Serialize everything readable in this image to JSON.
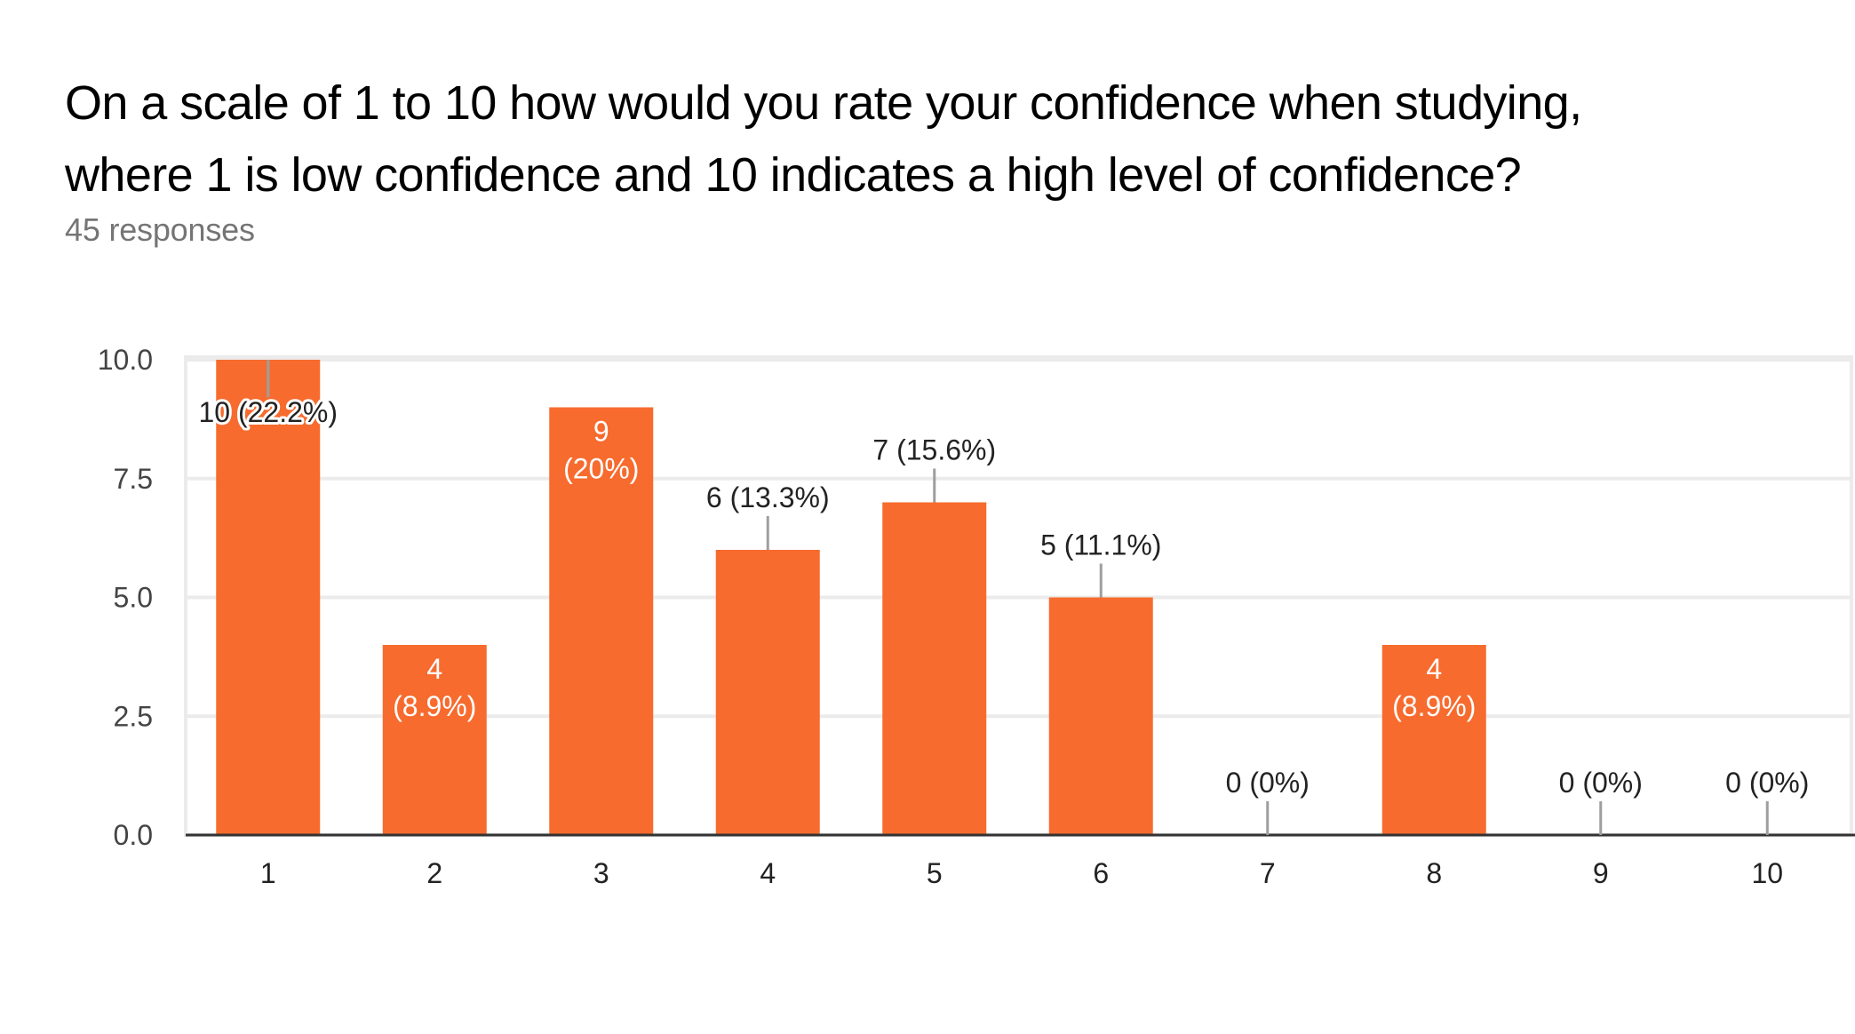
{
  "header": {
    "title_line1": "On a scale of 1 to 10 how would you rate your confidence when studying,",
    "title_line2": "where 1 is low confidence and 10 indicates a high level of confidence?",
    "responses": "45 responses"
  },
  "colors": {
    "bar": "#F76B2E",
    "grid": "#EBEBEB",
    "baseline": "#333333",
    "leader": "#9E9E9E"
  },
  "chart_data": {
    "type": "bar",
    "title": "On a scale of 1 to 10 how would you rate your confidence when studying, where 1 is low confidence and 10 indicates a high level of confidence?",
    "subtitle": "45 responses",
    "categories": [
      "1",
      "2",
      "3",
      "4",
      "5",
      "6",
      "7",
      "8",
      "9",
      "10"
    ],
    "values": [
      10,
      4,
      9,
      6,
      7,
      5,
      0,
      4,
      0,
      0
    ],
    "data_labels": [
      "10 (22.2%)",
      "4 (8.9%)",
      "9 (20%)",
      "6 (13.3%)",
      "7 (15.6%)",
      "5 (11.1%)",
      "0 (0%)",
      "4 (8.9%)",
      "0 (0%)",
      "0 (0%)"
    ],
    "label_placement": [
      "halo",
      "inside",
      "inside",
      "outside",
      "outside",
      "outside",
      "outside",
      "inside",
      "outside",
      "outside"
    ],
    "xlabel": "",
    "ylabel": "",
    "ylim": [
      0,
      10
    ],
    "yticks": [
      "0.0",
      "2.5",
      "5.0",
      "7.5",
      "10.0"
    ],
    "grid": true,
    "legend": "none"
  }
}
